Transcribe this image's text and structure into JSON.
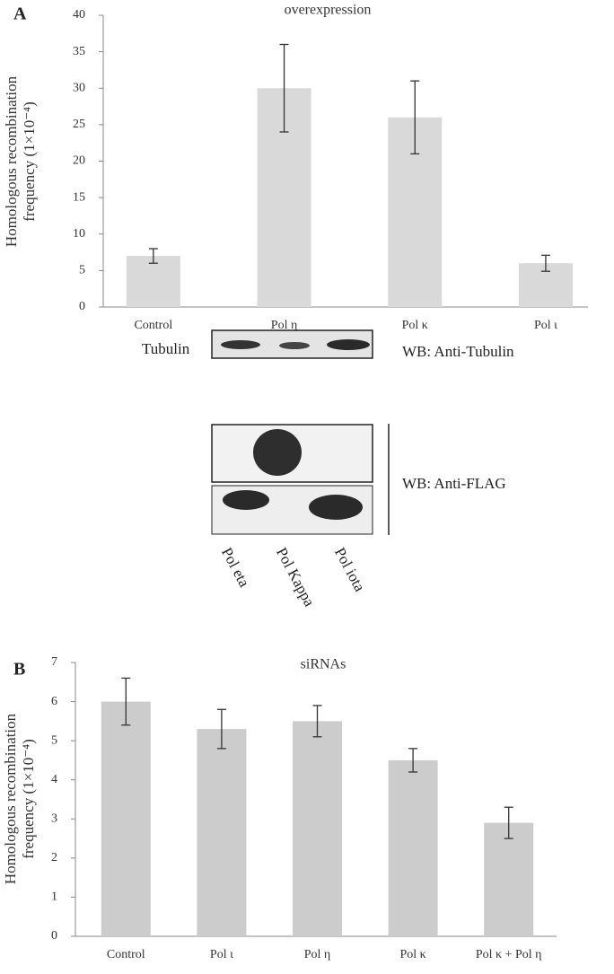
{
  "panel_labels": [
    "A",
    "B"
  ],
  "chart_data": [
    {
      "type": "bar",
      "title": "overexpression",
      "ylabel": [
        "Homologous recombination",
        "frequency (1×10⁻⁴)"
      ],
      "categories": [
        "Control",
        "Pol η",
        "Pol κ",
        "Pol ι"
      ],
      "values": [
        7,
        30,
        26,
        6
      ],
      "errors": [
        1,
        6,
        5,
        1.1
      ],
      "color": "#d9d9d9",
      "ylim": [
        0,
        40
      ],
      "yticks": [
        0,
        5,
        10,
        15,
        20,
        25,
        30,
        35,
        40
      ],
      "grid": false
    },
    {
      "type": "bar",
      "title": "siRNAs",
      "ylabel": [
        "Homologous  recombination",
        "frequency (1×10⁻⁴)"
      ],
      "categories": [
        "Control",
        "Pol ι",
        "Pol η",
        "Pol κ",
        "Pol κ + Pol η"
      ],
      "values": [
        6,
        5.3,
        5.5,
        4.5,
        2.9
      ],
      "errors": [
        0.6,
        0.5,
        0.4,
        0.3,
        0.4
      ],
      "color": "#cccccc",
      "ylim": [
        0,
        7
      ],
      "yticks": [
        0,
        1,
        2,
        3,
        4,
        5,
        6,
        7
      ],
      "grid": false
    }
  ],
  "blot": {
    "row_label": "Tubulin",
    "wb_tubulin": "WB: Anti-Tubulin",
    "wb_flag": "WB: Anti-FLAG",
    "lanes": [
      "Pol eta",
      "Pol Kappa",
      "Pol iota"
    ]
  }
}
